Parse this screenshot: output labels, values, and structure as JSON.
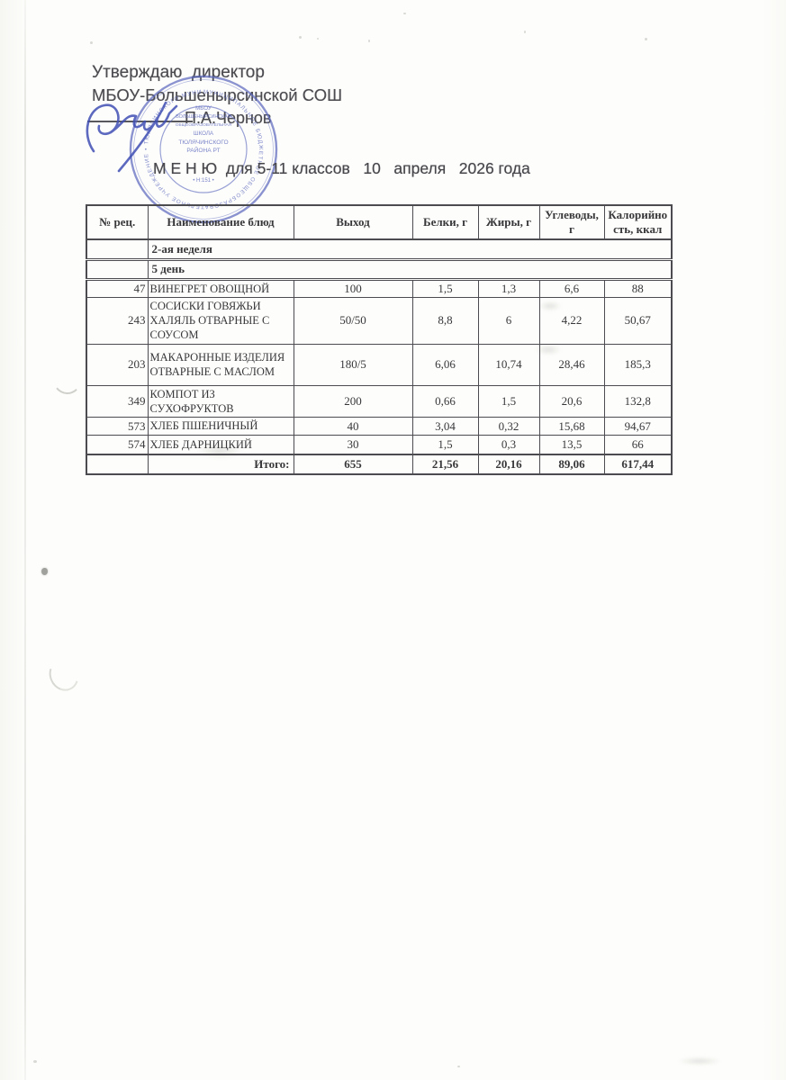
{
  "document": {
    "approve_line1": "Утверждаю  директор",
    "approve_line2": "МБОУ-Большенырсинской СОШ",
    "signer_name": "П.А.Чернов",
    "menu_title": "М Е Н Ю  для 5-11 классов   10   апреля   2026 года"
  },
  "stamp": {
    "color": "#5a66bd",
    "ring_text": "МУНИЦИПАЛЬНОЕ БЮДЖЕТНОЕ ОБЩЕОБРАЗОВАТЕЛЬНОЕ УЧРЕЖДЕНИЕ • ТЮЛЯЧИНСКОГО МУНИЦИПАЛЬНОГО РАЙОНА •",
    "center_lines": [
      "МБОУ",
      "БОЛЬШЕНЫРСИНСКАЯ",
      "ОБЩЕОБРАЗОВАТЕЛЬНАЯ",
      "ШКОЛА",
      "ТЮЛЯЧИНСКОГО",
      "РАЙОНА РТ"
    ],
    "code_line": "• Н:151 •"
  },
  "table": {
    "headers": [
      "№ рец.",
      "Наименование блюд",
      "Выход",
      "Белки, г",
      "Жиры, г",
      "Углеводы, г",
      "Калорийно сть, ккал"
    ],
    "week_label": "2-ая неделя",
    "day_label": "5 день",
    "rows": [
      {
        "num": "47",
        "name": "ВИНЕГРЕТ ОВОЩНОЙ",
        "out": "100",
        "protein": "1,5",
        "fat": "1,3",
        "carbs": "6,6",
        "kcal": "88"
      },
      {
        "num": "243",
        "name": "СОСИСКИ ГОВЯЖЬИ ХАЛЯЛЬ ОТВАРНЫЕ С СОУСОМ",
        "out": "50/50",
        "protein": "8,8",
        "fat": "6",
        "carbs": "4,22",
        "kcal": "50,67"
      },
      {
        "num": "203",
        "name": "МАКАРОННЫЕ ИЗДЕЛИЯ ОТВАРНЫЕ С МАСЛОМ",
        "out": "180/5",
        "protein": "6,06",
        "fat": "10,74",
        "carbs": "28,46",
        "kcal": "185,3"
      },
      {
        "num": "349",
        "name": "КОМПОТ ИЗ СУХОФРУКТОВ",
        "out": "200",
        "protein": "0,66",
        "fat": "1,5",
        "carbs": "20,6",
        "kcal": "132,8"
      },
      {
        "num": "573",
        "name": "ХЛЕБ ПШЕНИЧНЫЙ",
        "out": "40",
        "protein": "3,04",
        "fat": "0,32",
        "carbs": "15,68",
        "kcal": "94,67"
      },
      {
        "num": "574",
        "name": "ХЛЕБ ДАРНИЦКИЙ",
        "out": "30",
        "protein": "1,5",
        "fat": "0,3",
        "carbs": "13,5",
        "kcal": "66"
      }
    ],
    "totals": {
      "label": "Итого:",
      "out": "655",
      "protein": "21,56",
      "fat": "20,16",
      "carbs": "89,06",
      "kcal": "617,44"
    }
  }
}
